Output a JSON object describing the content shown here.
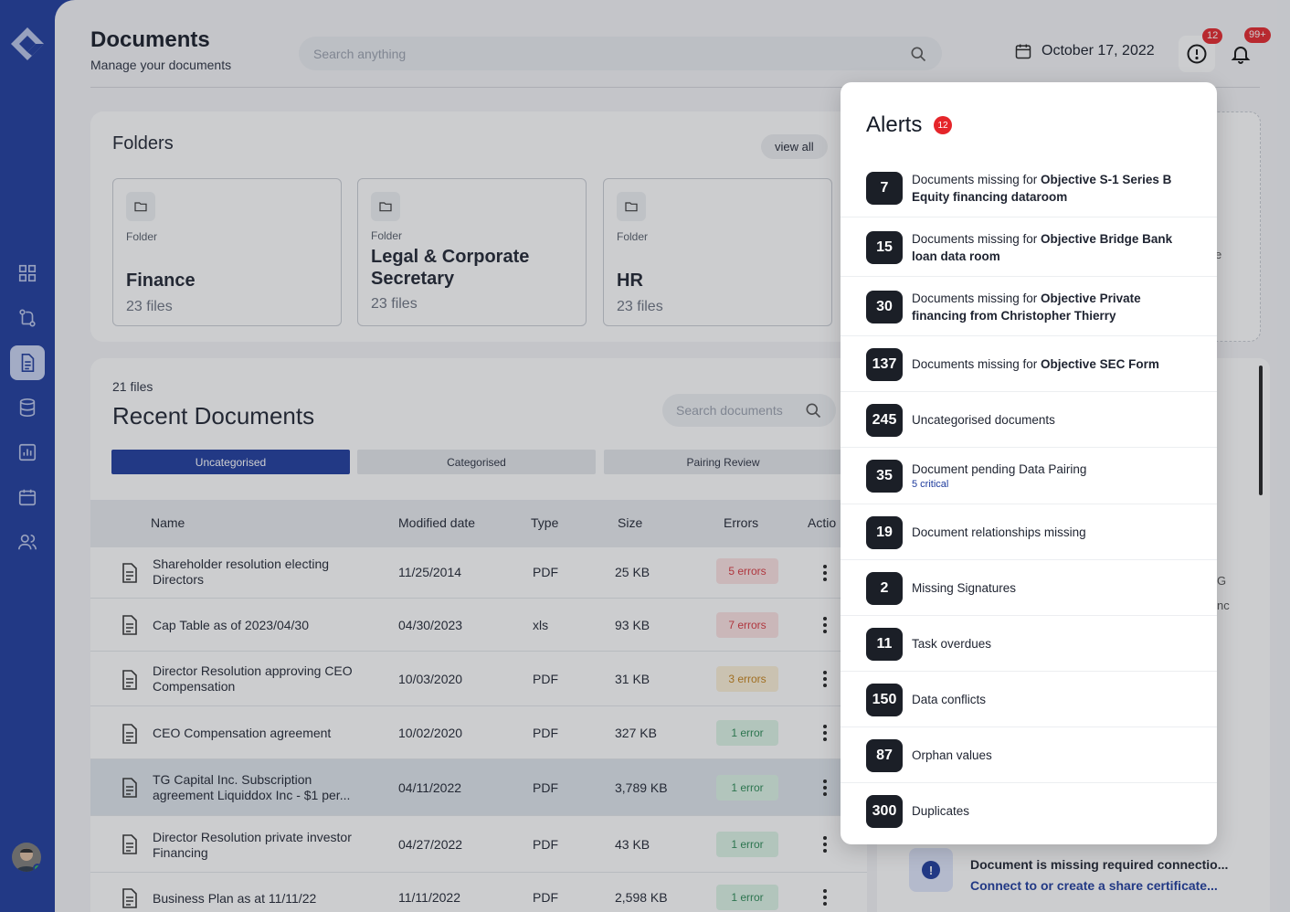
{
  "header": {
    "title": "Documents",
    "subtitle": "Manage your documents",
    "search_placeholder": "Search anything",
    "date": "October 17, 2022",
    "alerts_badge": "12",
    "notifications_badge": "99+"
  },
  "folders": {
    "title": "Folders",
    "view_all": "view all",
    "items": [
      {
        "label": "Folder",
        "name": "Finance",
        "count": "23 files"
      },
      {
        "label": "Folder",
        "name": "Legal & Corporate Secretary",
        "count": "23 files"
      },
      {
        "label": "Folder",
        "name": "HR",
        "count": "23 files"
      }
    ]
  },
  "recent": {
    "count": "21 files",
    "title": "Recent Documents",
    "search_placeholder": "Search documents",
    "tabs": [
      "Uncategorised",
      "Categorised",
      "Pairing Review"
    ],
    "columns": [
      "Name",
      "Modified date",
      "Type",
      "Size",
      "Errors",
      "Actio"
    ],
    "rows": [
      {
        "name": "Shareholder resolution electing Directors",
        "date": "11/25/2014",
        "type": "PDF",
        "size": "25 KB",
        "errors": "5 errors",
        "level": "red"
      },
      {
        "name": "Cap Table as of 2023/04/30",
        "date": "04/30/2023",
        "type": "xls",
        "size": "93 KB",
        "errors": "7 errors",
        "level": "red"
      },
      {
        "name": "Director Resolution approving CEO Compensation",
        "date": "10/03/2020",
        "type": "PDF",
        "size": "31 KB",
        "errors": "3 errors",
        "level": "amber"
      },
      {
        "name": "CEO Compensation agreement",
        "date": "10/02/2020",
        "type": "PDF",
        "size": "327 KB",
        "errors": "1 error",
        "level": "green"
      },
      {
        "name": "TG Capital Inc. Subscription agreement Liquiddox Inc - $1 per...",
        "date": "04/11/2022",
        "type": "PDF",
        "size": "3,789 KB",
        "errors": "1 error",
        "level": "green"
      },
      {
        "name": "Director Resolution private investor Financing",
        "date": "04/27/2022",
        "type": "PDF",
        "size": "43 KB",
        "errors": "1 error",
        "level": "green"
      },
      {
        "name": "Business Plan as at 11/11/22",
        "date": "11/11/2022",
        "type": "PDF",
        "size": "2,598 KB",
        "errors": "1 error",
        "level": "green"
      }
    ]
  },
  "right_panel": {
    "fragments": [
      "e",
      "G",
      "nc"
    ],
    "notice_title": "Document is missing required connectio...",
    "notice_link": "Connect to or create a share certificate..."
  },
  "alerts": {
    "title": "Alerts",
    "badge": "12",
    "items": [
      {
        "count": "7",
        "prefix": "Documents missing for ",
        "bold": "Objective S-1 Series B Equity financing dataroom",
        "sub": ""
      },
      {
        "count": "15",
        "prefix": "Documents missing for ",
        "bold": "Objective Bridge Bank loan data room",
        "sub": ""
      },
      {
        "count": "30",
        "prefix": "Documents missing for ",
        "bold": "Objective Private financing from Christopher Thierry",
        "sub": ""
      },
      {
        "count": "137",
        "prefix": "Documents missing for ",
        "bold": "Objective SEC Form",
        "sub": ""
      },
      {
        "count": "245",
        "prefix": "Uncategorised documents",
        "bold": "",
        "sub": ""
      },
      {
        "count": "35",
        "prefix": "Document pending Data Pairing",
        "bold": "",
        "sub": "5 critical"
      },
      {
        "count": "19",
        "prefix": "Document relationships missing",
        "bold": "",
        "sub": ""
      },
      {
        "count": "2",
        "prefix": "Missing Signatures",
        "bold": "",
        "sub": ""
      },
      {
        "count": "11",
        "prefix": "Task overdues",
        "bold": "",
        "sub": ""
      },
      {
        "count": "150",
        "prefix": "Data conflicts",
        "bold": "",
        "sub": ""
      },
      {
        "count": "87",
        "prefix": "Orphan values",
        "bold": "",
        "sub": ""
      },
      {
        "count": "300",
        "prefix": "Duplicates",
        "bold": "",
        "sub": ""
      }
    ]
  },
  "colors": {
    "brand": "#1d3a9c",
    "alert_red": "#e5252a"
  }
}
